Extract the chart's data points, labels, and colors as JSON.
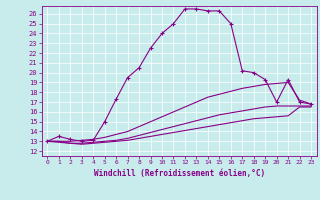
{
  "xlabel": "Windchill (Refroidissement éolien,°C)",
  "bg_color": "#c8ecec",
  "line_color": "#880088",
  "xlim": [
    -0.5,
    23.5
  ],
  "ylim": [
    11.5,
    26.8
  ],
  "xticks": [
    0,
    1,
    2,
    3,
    4,
    5,
    6,
    7,
    8,
    9,
    10,
    11,
    12,
    13,
    14,
    15,
    16,
    17,
    18,
    19,
    20,
    21,
    22,
    23
  ],
  "yticks": [
    12,
    13,
    14,
    15,
    16,
    17,
    18,
    19,
    20,
    21,
    22,
    23,
    24,
    25,
    26
  ],
  "series": [
    {
      "x": [
        0,
        1,
        2,
        3,
        4,
        5,
        6,
        7,
        8,
        9,
        10,
        11,
        12,
        13,
        14,
        15,
        16,
        17,
        18,
        19,
        20,
        21,
        22,
        23
      ],
      "y": [
        13.0,
        13.5,
        13.2,
        13.0,
        13.1,
        15.0,
        17.3,
        19.5,
        20.5,
        22.5,
        24.0,
        25.0,
        26.5,
        26.5,
        26.3,
        26.3,
        25.0,
        20.2,
        20.0,
        19.3,
        17.0,
        19.3,
        17.0,
        16.8
      ],
      "marker": true
    },
    {
      "x": [
        0,
        1,
        2,
        3,
        4,
        5,
        6,
        7,
        8,
        9,
        10,
        11,
        12,
        13,
        14,
        15,
        16,
        17,
        18,
        19,
        20,
        21,
        22,
        23
      ],
      "y": [
        13.0,
        13.0,
        13.0,
        13.1,
        13.2,
        13.4,
        13.7,
        14.0,
        14.5,
        15.0,
        15.5,
        16.0,
        16.5,
        17.0,
        17.5,
        17.8,
        18.1,
        18.4,
        18.6,
        18.8,
        18.9,
        19.0,
        17.2,
        16.8
      ],
      "marker": false
    },
    {
      "x": [
        0,
        1,
        2,
        3,
        4,
        5,
        6,
        7,
        8,
        9,
        10,
        11,
        12,
        13,
        14,
        15,
        16,
        17,
        18,
        19,
        20,
        21,
        22,
        23
      ],
      "y": [
        13.0,
        13.0,
        12.8,
        12.8,
        12.9,
        13.0,
        13.1,
        13.3,
        13.6,
        13.9,
        14.2,
        14.5,
        14.8,
        15.1,
        15.4,
        15.7,
        15.9,
        16.1,
        16.3,
        16.5,
        16.6,
        16.6,
        16.6,
        16.6
      ],
      "marker": false
    },
    {
      "x": [
        0,
        1,
        2,
        3,
        4,
        5,
        6,
        7,
        8,
        9,
        10,
        11,
        12,
        13,
        14,
        15,
        16,
        17,
        18,
        19,
        20,
        21,
        22,
        23
      ],
      "y": [
        13.0,
        12.9,
        12.8,
        12.7,
        12.8,
        12.9,
        13.0,
        13.1,
        13.3,
        13.5,
        13.7,
        13.9,
        14.1,
        14.3,
        14.5,
        14.7,
        14.9,
        15.1,
        15.3,
        15.4,
        15.5,
        15.6,
        16.5,
        16.5
      ],
      "marker": false
    }
  ]
}
